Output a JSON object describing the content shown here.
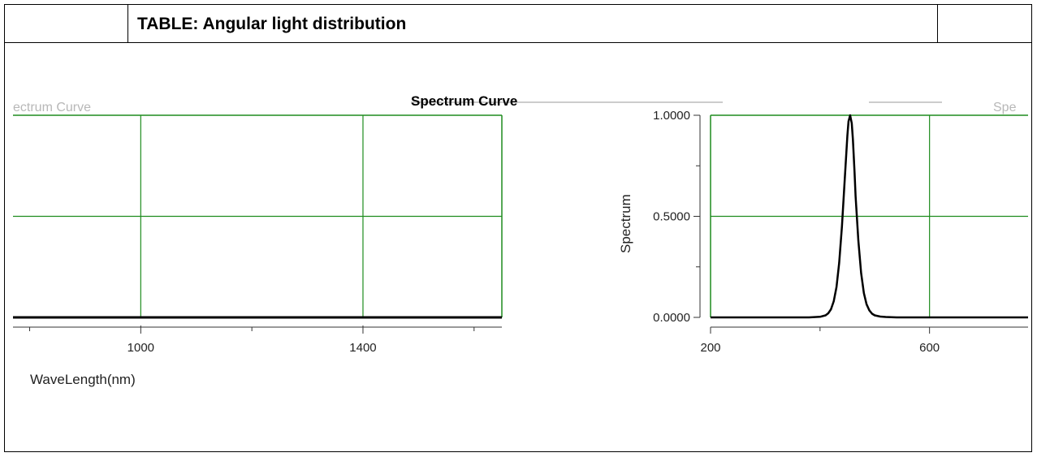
{
  "table": {
    "header_title": "TABLE: Angular light distribution"
  },
  "colors": {
    "grid": "#1e8c1e",
    "curve": "#000000",
    "border": "#000000"
  },
  "chart_data": [
    {
      "type": "line",
      "title": "Spectrum Curve",
      "xlabel": "WaveLength(nm)",
      "ylabel": "",
      "xlim": [
        770,
        1650
      ],
      "ylim": [
        0,
        1
      ],
      "x_ticks": [
        1000,
        1400
      ],
      "grid": true,
      "series": [
        {
          "x": [
            770,
            1650
          ],
          "y": [
            0.0,
            0.0
          ]
        }
      ]
    },
    {
      "type": "line",
      "title": "",
      "xlabel": "",
      "ylabel": "Spectrum",
      "xlim": [
        200,
        780
      ],
      "ylim": [
        0,
        1
      ],
      "x_ticks": [
        200,
        600
      ],
      "y_ticks": [
        "0.0000",
        "0.5000",
        "1.0000"
      ],
      "grid": true,
      "series": [
        {
          "x": [
            200,
            380,
            400,
            410,
            415,
            420,
            425,
            430,
            435,
            440,
            445,
            450,
            452,
            455,
            458,
            460,
            463,
            465,
            470,
            475,
            480,
            485,
            490,
            495,
            500,
            510,
            520,
            530,
            540,
            780
          ],
          "y": [
            0.0,
            0.0,
            0.003,
            0.01,
            0.02,
            0.04,
            0.08,
            0.15,
            0.27,
            0.45,
            0.68,
            0.9,
            0.97,
            1.0,
            0.96,
            0.88,
            0.72,
            0.6,
            0.38,
            0.22,
            0.12,
            0.065,
            0.035,
            0.018,
            0.01,
            0.004,
            0.002,
            0.001,
            0.0,
            0.0
          ]
        }
      ]
    }
  ],
  "fragments": {
    "left_top_label": "ectrum Curve",
    "right_top_label": "Spe"
  }
}
